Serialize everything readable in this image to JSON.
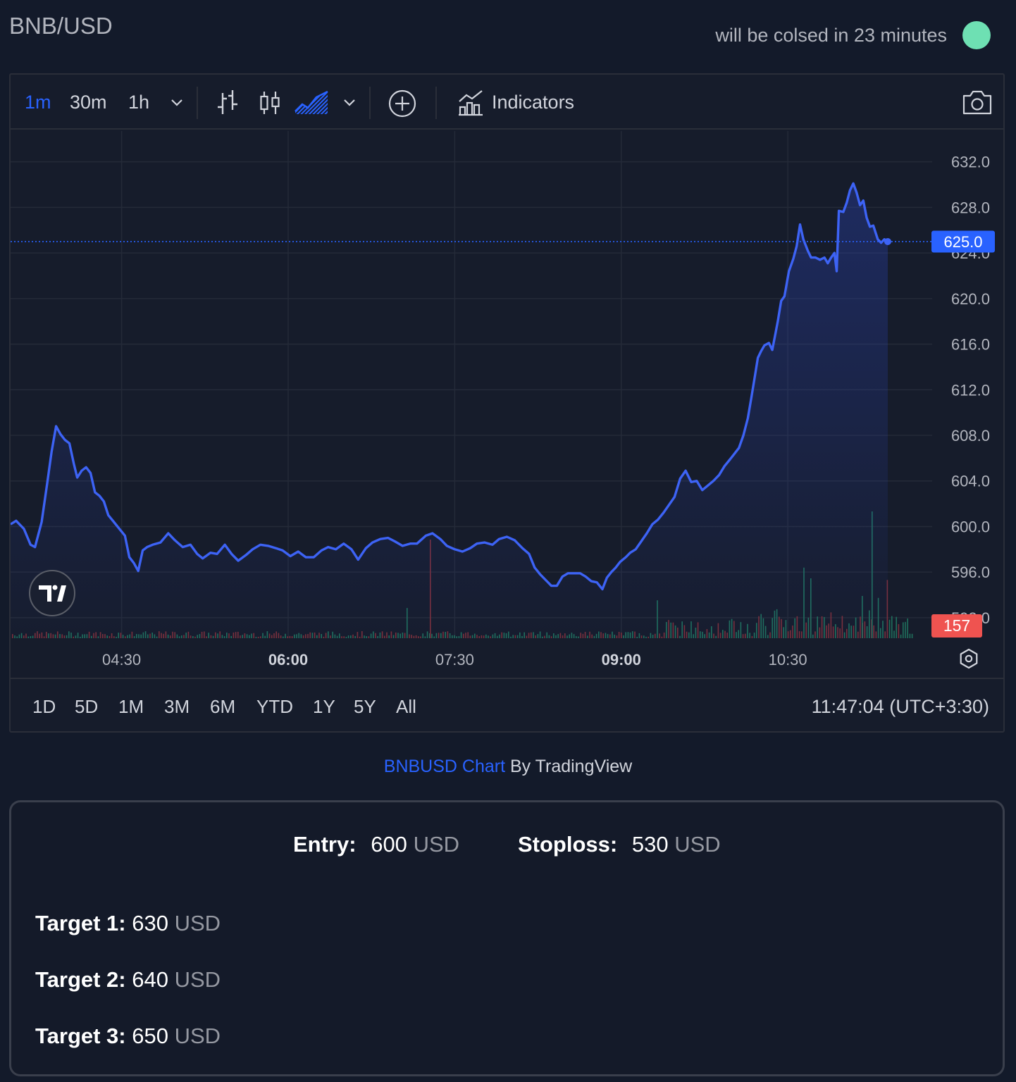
{
  "header": {
    "pair": "BNB/USD",
    "status_text": "will be colsed in 23 minutes",
    "status_color": "#6ee0b3"
  },
  "toolbar": {
    "timeframes": [
      "1m",
      "30m",
      "1h"
    ],
    "active_timeframe": "1m",
    "indicators_label": "Indicators",
    "icons": [
      "chevron-down-icon",
      "bar-chart-icon",
      "candle-chart-icon",
      "area-chart-icon",
      "add-compare-icon",
      "indicators-icon",
      "camera-icon"
    ]
  },
  "chart_data": {
    "type": "area",
    "symbol": "BNBUSD",
    "x_ticks": [
      "04:30",
      "06:00",
      "07:30",
      "09:00",
      "10:30"
    ],
    "x_ticks_bold": [
      "06:00",
      "09:00"
    ],
    "y_ticks": [
      "632.0",
      "628.0",
      "624.0",
      "620.0",
      "616.0",
      "612.0",
      "608.0",
      "604.0",
      "600.0",
      "596.0",
      "592.0"
    ],
    "ylim": [
      590.2,
      634.7
    ],
    "xlim": [
      3.5,
      11.8
    ],
    "last_price": "625.0",
    "last_price_color": "#2962ff",
    "last_volume": "157",
    "last_volume_color": "#ef5350",
    "line_color": "#3d63f5",
    "series": [
      {
        "values": [
          [
            3.5,
            600.2
          ],
          [
            3.55,
            600.5
          ],
          [
            3.62,
            599.8
          ],
          [
            3.68,
            598.4
          ],
          [
            3.72,
            598.2
          ],
          [
            3.78,
            600.4
          ],
          [
            3.83,
            603.8
          ],
          [
            3.87,
            606.6
          ],
          [
            3.91,
            608.8
          ],
          [
            3.95,
            608.1
          ],
          [
            3.99,
            607.6
          ],
          [
            4.03,
            607.3
          ],
          [
            4.07,
            605.5
          ],
          [
            4.1,
            604.3
          ],
          [
            4.14,
            604.9
          ],
          [
            4.18,
            605.2
          ],
          [
            4.22,
            604.7
          ],
          [
            4.26,
            603.0
          ],
          [
            4.3,
            602.7
          ],
          [
            4.34,
            602.2
          ],
          [
            4.38,
            601.0
          ],
          [
            4.43,
            600.4
          ],
          [
            4.48,
            599.8
          ],
          [
            4.53,
            599.2
          ],
          [
            4.57,
            597.3
          ],
          [
            4.61,
            596.8
          ],
          [
            4.65,
            596.1
          ],
          [
            4.69,
            597.9
          ],
          [
            4.73,
            598.2
          ],
          [
            4.78,
            598.4
          ],
          [
            4.85,
            598.6
          ],
          [
            4.92,
            599.4
          ],
          [
            4.98,
            598.8
          ],
          [
            5.05,
            598.2
          ],
          [
            5.12,
            598.4
          ],
          [
            5.18,
            597.6
          ],
          [
            5.23,
            597.2
          ],
          [
            5.3,
            597.7
          ],
          [
            5.36,
            597.6
          ],
          [
            5.43,
            598.4
          ],
          [
            5.49,
            597.6
          ],
          [
            5.55,
            597.0
          ],
          [
            5.62,
            597.5
          ],
          [
            5.68,
            598.0
          ],
          [
            5.75,
            598.4
          ],
          [
            5.82,
            598.3
          ],
          [
            5.89,
            598.1
          ],
          [
            5.95,
            597.9
          ],
          [
            6.02,
            597.4
          ],
          [
            6.09,
            597.8
          ],
          [
            6.16,
            597.3
          ],
          [
            6.23,
            597.3
          ],
          [
            6.3,
            597.9
          ],
          [
            6.36,
            598.2
          ],
          [
            6.43,
            598.0
          ],
          [
            6.5,
            598.5
          ],
          [
            6.57,
            598.0
          ],
          [
            6.63,
            597.1
          ],
          [
            6.7,
            598.1
          ],
          [
            6.76,
            598.6
          ],
          [
            6.83,
            598.9
          ],
          [
            6.9,
            599.0
          ],
          [
            6.96,
            598.7
          ],
          [
            7.03,
            598.3
          ],
          [
            7.1,
            598.5
          ],
          [
            7.16,
            598.5
          ],
          [
            7.24,
            599.2
          ],
          [
            7.3,
            599.4
          ],
          [
            7.37,
            598.9
          ],
          [
            7.43,
            598.3
          ],
          [
            7.5,
            598.0
          ],
          [
            7.57,
            597.8
          ],
          [
            7.64,
            598.1
          ],
          [
            7.7,
            598.5
          ],
          [
            7.77,
            598.6
          ],
          [
            7.84,
            598.4
          ],
          [
            7.9,
            598.9
          ],
          [
            7.97,
            599.1
          ],
          [
            8.04,
            598.8
          ],
          [
            8.11,
            598.1
          ],
          [
            8.17,
            597.6
          ],
          [
            8.22,
            596.4
          ],
          [
            8.27,
            595.8
          ],
          [
            8.32,
            595.3
          ],
          [
            8.37,
            594.8
          ],
          [
            8.42,
            594.8
          ],
          [
            8.47,
            595.6
          ],
          [
            8.52,
            595.9
          ],
          [
            8.58,
            595.9
          ],
          [
            8.63,
            595.9
          ],
          [
            8.68,
            595.6
          ],
          [
            8.73,
            595.2
          ],
          [
            8.78,
            595.1
          ],
          [
            8.83,
            594.5
          ],
          [
            8.87,
            595.5
          ],
          [
            8.91,
            596.0
          ],
          [
            8.95,
            596.4
          ],
          [
            8.99,
            596.9
          ],
          [
            9.04,
            597.3
          ],
          [
            9.08,
            597.7
          ],
          [
            9.13,
            598.0
          ],
          [
            9.18,
            598.7
          ],
          [
            9.23,
            599.4
          ],
          [
            9.28,
            600.2
          ],
          [
            9.33,
            600.6
          ],
          [
            9.38,
            601.2
          ],
          [
            9.43,
            601.9
          ],
          [
            9.48,
            602.6
          ],
          [
            9.53,
            604.2
          ],
          [
            9.58,
            604.9
          ],
          [
            9.63,
            603.9
          ],
          [
            9.68,
            604.0
          ],
          [
            9.73,
            603.2
          ],
          [
            9.78,
            603.6
          ],
          [
            9.83,
            604.0
          ],
          [
            9.88,
            604.5
          ],
          [
            9.93,
            605.3
          ],
          [
            9.98,
            605.9
          ],
          [
            10.02,
            606.4
          ],
          [
            10.06,
            606.9
          ],
          [
            10.1,
            608.0
          ],
          [
            10.14,
            609.5
          ],
          [
            10.17,
            611.2
          ],
          [
            10.2,
            613.0
          ],
          [
            10.23,
            614.8
          ],
          [
            10.26,
            615.4
          ],
          [
            10.29,
            615.9
          ],
          [
            10.33,
            616.1
          ],
          [
            10.36,
            615.5
          ],
          [
            10.39,
            617.0
          ],
          [
            10.41,
            618.0
          ],
          [
            10.44,
            619.8
          ],
          [
            10.47,
            620.2
          ],
          [
            10.51,
            622.4
          ],
          [
            10.55,
            623.5
          ],
          [
            10.58,
            624.6
          ],
          [
            10.61,
            626.5
          ],
          [
            10.64,
            625.2
          ],
          [
            10.68,
            624.2
          ],
          [
            10.71,
            623.6
          ],
          [
            10.75,
            623.6
          ],
          [
            10.79,
            623.4
          ],
          [
            10.83,
            623.6
          ],
          [
            10.86,
            623.1
          ],
          [
            10.89,
            623.6
          ],
          [
            10.92,
            624.0
          ],
          [
            10.94,
            622.4
          ],
          [
            10.96,
            627.7
          ],
          [
            11.0,
            627.6
          ],
          [
            11.03,
            628.4
          ],
          [
            11.06,
            629.5
          ],
          [
            11.09,
            630.1
          ],
          [
            11.12,
            629.3
          ],
          [
            11.15,
            628.2
          ],
          [
            11.18,
            628.6
          ],
          [
            11.21,
            627.1
          ],
          [
            11.24,
            626.3
          ],
          [
            11.27,
            626.4
          ],
          [
            11.31,
            625.2
          ],
          [
            11.34,
            624.9
          ],
          [
            11.37,
            625.2
          ],
          [
            11.4,
            625.0
          ]
        ]
      }
    ],
    "grid": true,
    "volume": true
  },
  "range_bar": {
    "ranges": [
      "1D",
      "5D",
      "1M",
      "3M",
      "6M",
      "YTD",
      "1Y",
      "5Y",
      "All"
    ],
    "time": "11:47:04 (UTC+3:30)"
  },
  "credit": {
    "link_text": "BNBUSD Chart",
    "by_text": "By TradingView"
  },
  "signal": {
    "entry_label": "Entry:",
    "entry_value": "600",
    "stoploss_label": "Stoploss:",
    "stoploss_value": "530",
    "unit": "USD",
    "targets": [
      {
        "label": "Target 1:",
        "value": "630"
      },
      {
        "label": "Target 2:",
        "value": "640"
      },
      {
        "label": "Target 3:",
        "value": "650"
      }
    ]
  }
}
